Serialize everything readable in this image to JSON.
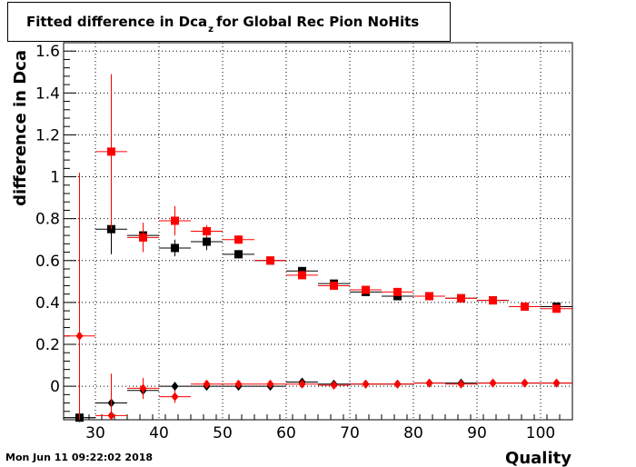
{
  "title": {
    "main": "Fitted difference in Dca",
    "sub": "z",
    "rest": "for Global Rec Pion NoHits"
  },
  "timestamp": "Mon Jun 11 09:22:02 2018",
  "chart_data": {
    "type": "scatter",
    "xlabel": "Quality",
    "ylabel": "difference in Dca",
    "xlim": [
      25,
      105
    ],
    "ylim": [
      -0.16,
      1.64
    ],
    "x_ticks": [
      30,
      40,
      50,
      60,
      70,
      80,
      90,
      100
    ],
    "y_ticks": [
      0,
      0.2,
      0.4,
      0.6,
      0.8,
      1,
      1.2,
      1.4,
      1.6
    ],
    "y_tick_labels": [
      "0",
      "0.2",
      "0.4",
      "0.6",
      "0.8",
      "1",
      "1.2",
      "1.4",
      "1.6"
    ],
    "grid": true,
    "series": [
      {
        "marker": "square",
        "color": "#000000",
        "points": [
          {
            "x": 27.5,
            "y": -0.15,
            "err": 0.02
          },
          {
            "x": 32.5,
            "y": 0.75,
            "err": 0.12
          },
          {
            "x": 37.5,
            "y": 0.72,
            "err": 0.06
          },
          {
            "x": 42.5,
            "y": 0.66,
            "err": 0.04
          },
          {
            "x": 47.5,
            "y": 0.69,
            "err": 0.04
          },
          {
            "x": 52.5,
            "y": 0.63,
            "err": 0.02
          },
          {
            "x": 57.5,
            "y": 0.6,
            "err": 0.01
          },
          {
            "x": 62.5,
            "y": 0.55,
            "err": 0.01
          },
          {
            "x": 67.5,
            "y": 0.49,
            "err": 0.01
          },
          {
            "x": 72.5,
            "y": 0.45,
            "err": 0.01
          },
          {
            "x": 77.5,
            "y": 0.43,
            "err": 0.01
          },
          {
            "x": 82.5,
            "y": 0.43,
            "err": 0.01
          },
          {
            "x": 87.5,
            "y": 0.42,
            "err": 0.01
          },
          {
            "x": 92.5,
            "y": 0.41,
            "err": 0.01
          },
          {
            "x": 97.5,
            "y": 0.38,
            "err": 0.01
          },
          {
            "x": 102.5,
            "y": 0.38,
            "err": 0.01
          }
        ]
      },
      {
        "marker": "square",
        "color": "#ff0000",
        "points": [
          {
            "x": 32.5,
            "y": 1.12,
            "err": 0.37
          },
          {
            "x": 37.5,
            "y": 0.71,
            "err": 0.07
          },
          {
            "x": 42.5,
            "y": 0.79,
            "err": 0.07
          },
          {
            "x": 47.5,
            "y": 0.74,
            "err": 0.03
          },
          {
            "x": 52.5,
            "y": 0.7,
            "err": 0.02
          },
          {
            "x": 57.5,
            "y": 0.6,
            "err": 0.01
          },
          {
            "x": 62.5,
            "y": 0.53,
            "err": 0.01
          },
          {
            "x": 67.5,
            "y": 0.48,
            "err": 0.01
          },
          {
            "x": 72.5,
            "y": 0.46,
            "err": 0.01
          },
          {
            "x": 77.5,
            "y": 0.45,
            "err": 0.01
          },
          {
            "x": 82.5,
            "y": 0.43,
            "err": 0.01
          },
          {
            "x": 87.5,
            "y": 0.42,
            "err": 0.01
          },
          {
            "x": 92.5,
            "y": 0.41,
            "err": 0.01
          },
          {
            "x": 97.5,
            "y": 0.38,
            "err": 0.01
          },
          {
            "x": 102.5,
            "y": 0.37,
            "err": 0.01
          }
        ]
      },
      {
        "marker": "diamond",
        "color": "#000000",
        "points": [
          {
            "x": 27.5,
            "y": -0.15,
            "err": 0.02
          },
          {
            "x": 32.5,
            "y": -0.08,
            "err": 0.05
          },
          {
            "x": 37.5,
            "y": -0.02,
            "err": 0.04
          },
          {
            "x": 42.5,
            "y": 0.0,
            "err": 0.02
          },
          {
            "x": 47.5,
            "y": 0.0,
            "err": 0.01
          },
          {
            "x": 52.5,
            "y": 0.0,
            "err": 0.01
          },
          {
            "x": 57.5,
            "y": 0.0,
            "err": 0.01
          },
          {
            "x": 62.5,
            "y": 0.02,
            "err": 0.01
          },
          {
            "x": 67.5,
            "y": 0.01,
            "err": 0.01
          },
          {
            "x": 72.5,
            "y": 0.01,
            "err": 0.005
          },
          {
            "x": 77.5,
            "y": 0.01,
            "err": 0.005
          },
          {
            "x": 82.5,
            "y": 0.015,
            "err": 0.005
          },
          {
            "x": 87.5,
            "y": 0.015,
            "err": 0.005
          },
          {
            "x": 92.5,
            "y": 0.015,
            "err": 0.005
          },
          {
            "x": 97.5,
            "y": 0.015,
            "err": 0.005
          },
          {
            "x": 102.5,
            "y": 0.015,
            "err": 0.005
          }
        ]
      },
      {
        "marker": "diamond",
        "color": "#ff0000",
        "points": [
          {
            "x": 27.5,
            "y": 0.24,
            "err": 0.78
          },
          {
            "x": 32.5,
            "y": -0.14,
            "err": 0.2
          },
          {
            "x": 37.5,
            "y": -0.01,
            "err": 0.05
          },
          {
            "x": 42.5,
            "y": -0.05,
            "err": 0.03
          },
          {
            "x": 47.5,
            "y": 0.01,
            "err": 0.01
          },
          {
            "x": 52.5,
            "y": 0.01,
            "err": 0.01
          },
          {
            "x": 57.5,
            "y": 0.01,
            "err": 0.01
          },
          {
            "x": 62.5,
            "y": 0.01,
            "err": 0.005
          },
          {
            "x": 67.5,
            "y": 0.005,
            "err": 0.005
          },
          {
            "x": 72.5,
            "y": 0.01,
            "err": 0.005
          },
          {
            "x": 77.5,
            "y": 0.01,
            "err": 0.005
          },
          {
            "x": 82.5,
            "y": 0.015,
            "err": 0.005
          },
          {
            "x": 87.5,
            "y": 0.01,
            "err": 0.005
          },
          {
            "x": 92.5,
            "y": 0.015,
            "err": 0.005
          },
          {
            "x": 97.5,
            "y": 0.015,
            "err": 0.005
          },
          {
            "x": 102.5,
            "y": 0.015,
            "err": 0.005
          }
        ]
      }
    ]
  }
}
